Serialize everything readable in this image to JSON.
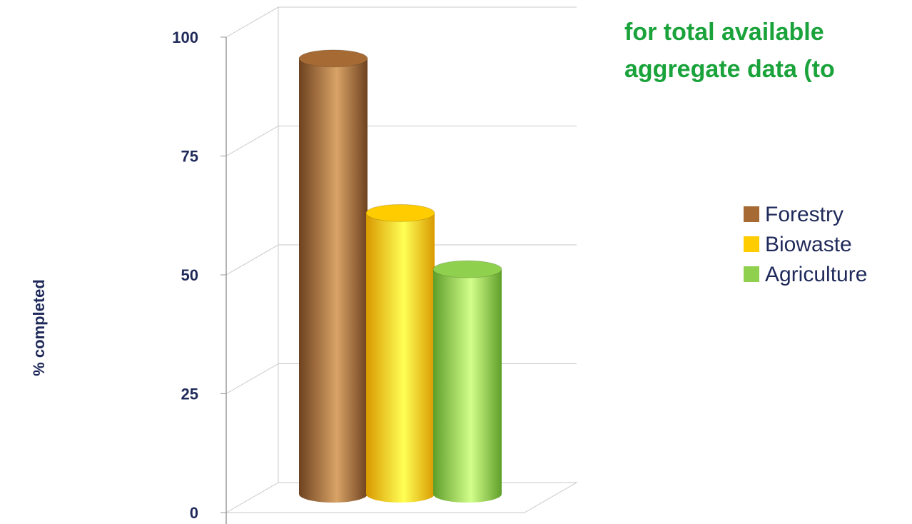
{
  "chart_data": {
    "type": "bar",
    "title_lines": [
      "for total available",
      "aggregate data (to"
    ],
    "ylabel": "% completed",
    "ylim": [
      0,
      100
    ],
    "yticks": [
      "0",
      "25",
      "50",
      "75",
      "100"
    ],
    "series": [
      {
        "name": "Forestry",
        "value": 93,
        "color": "#a66b35"
      },
      {
        "name": "Biowaste",
        "value": 60,
        "color": "#ffcc00"
      },
      {
        "name": "Agriculture",
        "value": 48,
        "color": "#8fd14f"
      }
    ],
    "grid": true,
    "legend_position": "right"
  }
}
